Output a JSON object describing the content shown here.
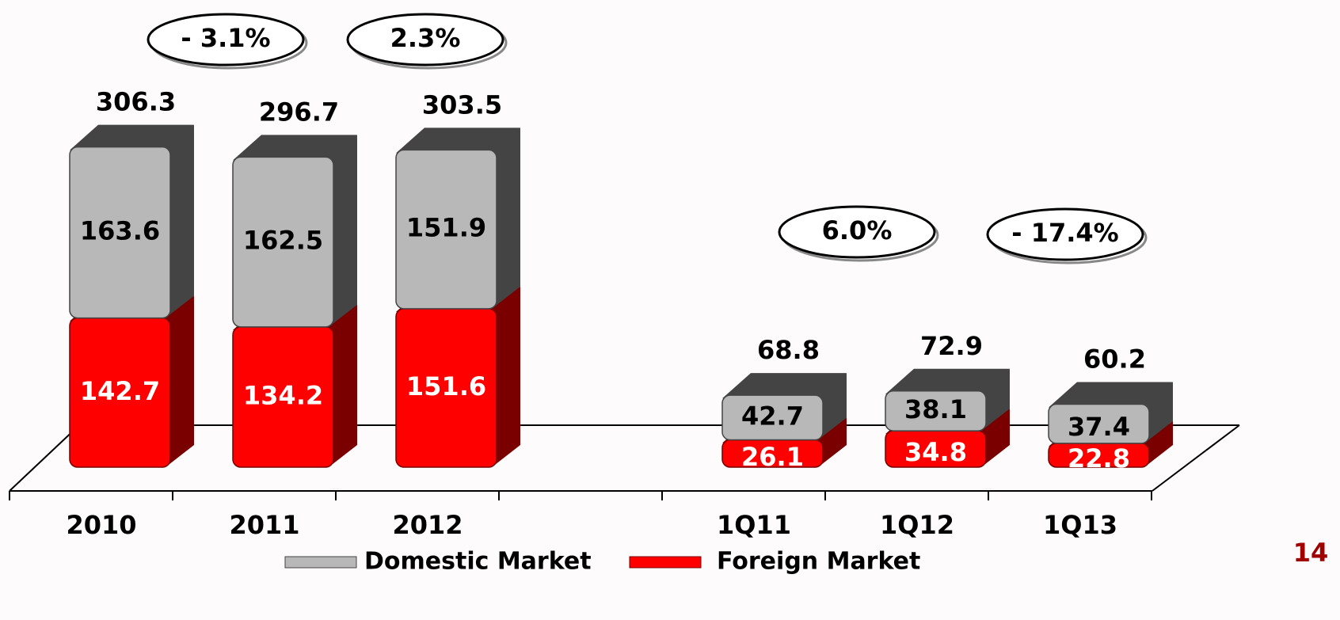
{
  "chart_data": {
    "type": "bar3d_stacked",
    "categories": [
      "2010",
      "2011",
      "2012",
      null,
      "1Q11",
      "1Q12",
      "1Q13"
    ],
    "series": [
      {
        "name": "Foreign Market",
        "color": "#ff0000",
        "values": [
          142.7,
          134.2,
          151.6,
          null,
          26.1,
          34.8,
          22.8
        ]
      },
      {
        "name": "Domestic Market",
        "color": "#b8b8b8",
        "values": [
          163.6,
          162.5,
          151.9,
          null,
          42.7,
          38.1,
          37.4
        ]
      }
    ],
    "totals": [
      306.3,
      296.7,
      303.5,
      null,
      68.8,
      72.9,
      60.2
    ],
    "annotations": [
      "- 3.1%",
      "2.3%",
      "6.0%",
      "- 17.4%"
    ],
    "page_number": "14"
  }
}
